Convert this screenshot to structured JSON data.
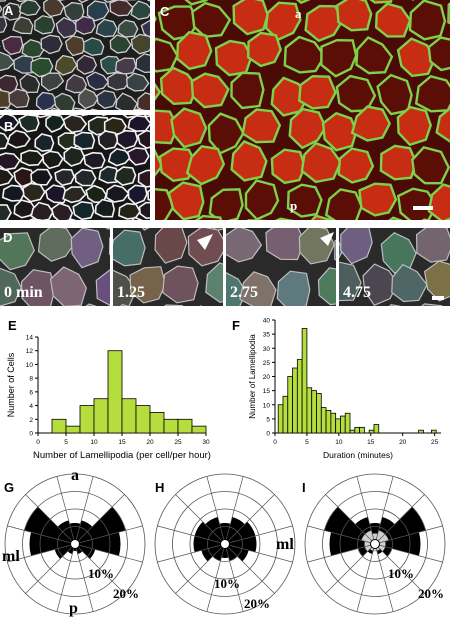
{
  "panel_labels": {
    "A": "A",
    "B": "B",
    "C": "C",
    "D": "D",
    "E": "E",
    "F": "F",
    "G": "G",
    "H": "H",
    "I": "I"
  },
  "panel_c_labels": {
    "a": "a",
    "p": "p"
  },
  "timepoints": [
    "0 min",
    "1.25",
    "2.75",
    "4.75"
  ],
  "colors": {
    "bar_fill": "#b5dd3e",
    "bar_stroke": "#000000",
    "membrane_green": "#7fd04a",
    "cytoplasm_red": "#c62d12"
  },
  "chart_data": [
    {
      "type": "bar",
      "id": "E",
      "xlabel": "Number of Lamellipodia (per cell/per hour)",
      "ylabel": "Number of Cells",
      "xlim": [
        0,
        30
      ],
      "ylim": [
        0,
        14
      ],
      "xticks": [
        0,
        5,
        10,
        15,
        20,
        25,
        30
      ],
      "yticks": [
        0,
        2,
        4,
        6,
        8,
        10,
        12,
        14
      ],
      "bin_width": 2.5,
      "bins": [
        {
          "x0": 2.5,
          "value": 2
        },
        {
          "x0": 5,
          "value": 1
        },
        {
          "x0": 7.5,
          "value": 4
        },
        {
          "x0": 10,
          "value": 5
        },
        {
          "x0": 12.5,
          "value": 12
        },
        {
          "x0": 15,
          "value": 5
        },
        {
          "x0": 17.5,
          "value": 4
        },
        {
          "x0": 20,
          "value": 3
        },
        {
          "x0": 22.5,
          "value": 2
        },
        {
          "x0": 25,
          "value": 2
        },
        {
          "x0": 27.5,
          "value": 1
        }
      ]
    },
    {
      "type": "bar",
      "id": "F",
      "xlabel": "Duration (minutes)",
      "ylabel": "Number of Lamellipodia",
      "xlim": [
        0,
        26
      ],
      "ylim": [
        0,
        40
      ],
      "xticks": [
        0,
        5,
        10,
        15,
        20,
        25
      ],
      "yticks": [
        0,
        5,
        10,
        15,
        20,
        25,
        30,
        35,
        40
      ],
      "bin_width": 0.75,
      "bins": [
        {
          "x0": 0.5,
          "value": 10
        },
        {
          "x0": 1.25,
          "value": 13
        },
        {
          "x0": 2.0,
          "value": 20
        },
        {
          "x0": 2.75,
          "value": 23
        },
        {
          "x0": 3.5,
          "value": 26
        },
        {
          "x0": 4.25,
          "value": 37
        },
        {
          "x0": 5.0,
          "value": 16
        },
        {
          "x0": 5.75,
          "value": 15
        },
        {
          "x0": 6.5,
          "value": 14
        },
        {
          "x0": 7.25,
          "value": 9
        },
        {
          "x0": 8.0,
          "value": 8
        },
        {
          "x0": 8.75,
          "value": 7
        },
        {
          "x0": 9.5,
          "value": 5
        },
        {
          "x0": 10.25,
          "value": 6
        },
        {
          "x0": 11.0,
          "value": 7
        },
        {
          "x0": 11.75,
          "value": 1
        },
        {
          "x0": 12.5,
          "value": 2
        },
        {
          "x0": 13.25,
          "value": 2
        },
        {
          "x0": 14.75,
          "value": 1
        },
        {
          "x0": 15.5,
          "value": 3
        },
        {
          "x0": 22.5,
          "value": 1
        },
        {
          "x0": 24.5,
          "value": 1
        }
      ]
    },
    {
      "type": "polar_rose",
      "id": "G",
      "ring_labels": [
        "10%",
        "20%"
      ],
      "direction_labels": {
        "top": "a",
        "bottom": "p",
        "left": "ml",
        "right": ""
      },
      "rings_percent": [
        5,
        10,
        15,
        20
      ],
      "sectors": 12,
      "values_percent": [
        6,
        7,
        15,
        13,
        6,
        3,
        2,
        3,
        6,
        13,
        15,
        7
      ]
    },
    {
      "type": "polar_rose",
      "id": "H",
      "ring_labels": [
        "10%",
        "20%"
      ],
      "direction_labels": {
        "top": "",
        "bottom": "",
        "left": "",
        "right": "ml"
      },
      "rings_percent": [
        5,
        10,
        15,
        20
      ],
      "sectors": 12,
      "values_percent": [
        6,
        8,
        9,
        9,
        7,
        5,
        4,
        5,
        7,
        9,
        9,
        8
      ]
    },
    {
      "type": "polar_rose",
      "id": "I",
      "ring_labels": [
        "10%",
        "20%"
      ],
      "direction_labels": {
        "top": "",
        "bottom": "",
        "left": "",
        "right": ""
      },
      "rings_percent": [
        5,
        10,
        15,
        20
      ],
      "sectors": 12,
      "values_percent": [
        6,
        8,
        15,
        13,
        5,
        3,
        2,
        3,
        5,
        13,
        15,
        8
      ],
      "inner_values_percent": [
        3,
        4,
        4,
        3,
        3,
        2,
        2,
        2,
        3,
        3,
        4,
        4
      ]
    }
  ]
}
